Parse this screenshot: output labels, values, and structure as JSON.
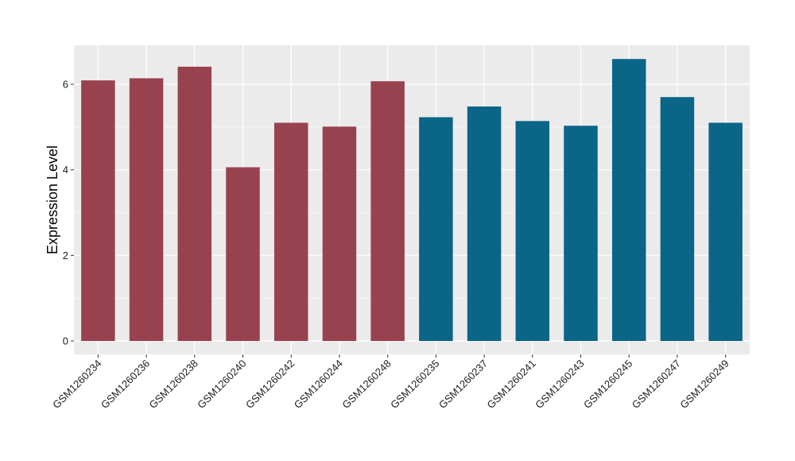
{
  "chart_data": {
    "type": "bar",
    "title": "",
    "xlabel": "",
    "ylabel": "Expression Level",
    "ylim": [
      0,
      6.9
    ],
    "yticks": [
      0,
      2,
      4,
      6
    ],
    "grid": true,
    "categories": [
      "GSM1260234",
      "GSM1260236",
      "GSM1260238",
      "GSM1260240",
      "GSM1260242",
      "GSM1260244",
      "GSM1260248",
      "GSM1260235",
      "GSM1260237",
      "GSM1260241",
      "GSM1260243",
      "GSM1260245",
      "GSM1260247",
      "GSM1260249"
    ],
    "values": [
      6.09,
      6.14,
      6.41,
      4.06,
      5.1,
      5.01,
      6.07,
      5.23,
      5.48,
      5.14,
      5.03,
      6.59,
      5.7,
      5.1
    ],
    "groups": [
      0,
      0,
      0,
      0,
      0,
      0,
      0,
      1,
      1,
      1,
      1,
      1,
      1,
      1
    ],
    "colors": [
      "#99424f",
      "#0b6586"
    ],
    "panel_background": "#ebebeb",
    "grid_color": "#ffffff"
  }
}
